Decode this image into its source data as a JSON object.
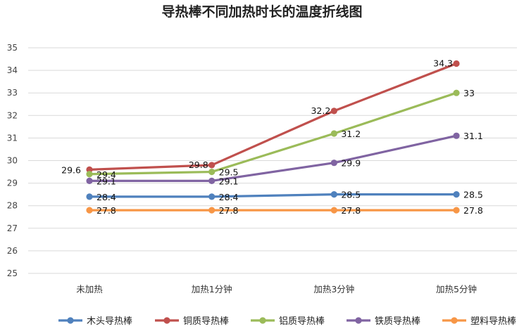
{
  "chart_data": {
    "type": "line",
    "title": "导热棒不同加热时长的温度折线图",
    "xlabel": "",
    "ylabel": "",
    "categories": [
      "未加热",
      "加热1分钟",
      "加热3分钟",
      "加热5分钟"
    ],
    "ylim": [
      25,
      35
    ],
    "yticks": [
      25,
      26,
      27,
      28,
      29,
      30,
      31,
      32,
      33,
      34,
      35
    ],
    "grid": true,
    "legend_position": "bottom",
    "series": [
      {
        "name": "木头导热棒",
        "color": "#4f81bd",
        "values": [
          28.4,
          28.4,
          28.5,
          28.5
        ],
        "labels": [
          "28.4",
          "28.4",
          "28.5",
          "28.5"
        ]
      },
      {
        "name": "铜质导热棒",
        "color": "#c0504d",
        "values": [
          29.6,
          29.8,
          32.2,
          34.3
        ],
        "labels": [
          "29.6",
          "29.8",
          "32.2",
          "34.3"
        ]
      },
      {
        "name": "铝质导热棒",
        "color": "#9bbb59",
        "values": [
          29.4,
          29.5,
          31.2,
          33
        ],
        "labels": [
          "29.4",
          "29.5",
          "31.2",
          "33"
        ]
      },
      {
        "name": "铁质导热棒",
        "color": "#8064a2",
        "values": [
          29.1,
          29.1,
          29.9,
          31.1
        ],
        "labels": [
          "29.1",
          "29.1",
          "29.9",
          "31.1"
        ]
      },
      {
        "name": "塑料导热棒",
        "color": "#f79646",
        "values": [
          27.8,
          27.8,
          27.8,
          27.8
        ],
        "labels": [
          "27.8",
          "27.8",
          "27.8",
          "27.8"
        ]
      }
    ]
  }
}
